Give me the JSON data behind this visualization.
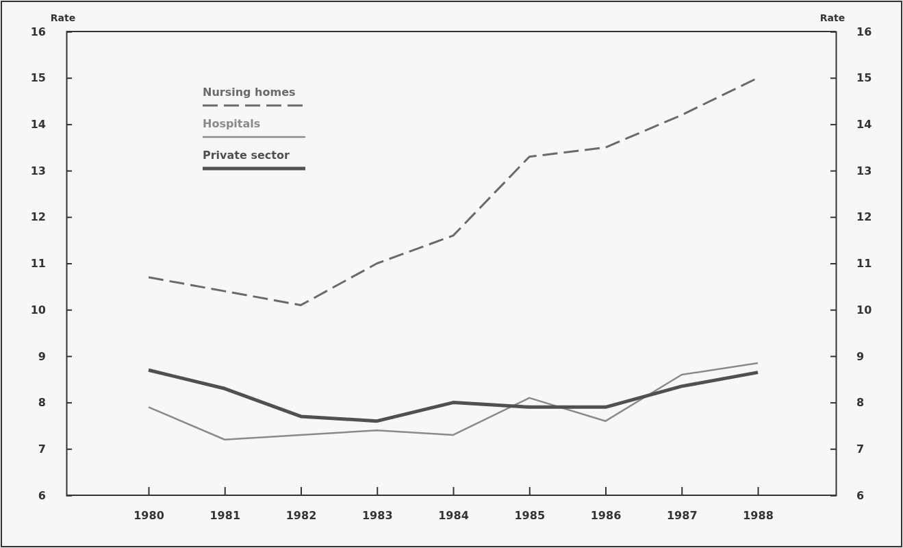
{
  "chart_data": {
    "type": "line",
    "ylabel": "Rate",
    "y2label": "Rate",
    "categories": [
      "1980",
      "1981",
      "1982",
      "1983",
      "1984",
      "1985",
      "1986",
      "1987",
      "1988"
    ],
    "series": [
      {
        "name": "Nursing homes",
        "color": "#6a6a6a",
        "line_style": "dashed",
        "values": [
          10.7,
          10.4,
          10.1,
          11.0,
          11.6,
          13.3,
          13.5,
          14.2,
          15.0
        ]
      },
      {
        "name": "Hospitals",
        "color": "#8a8a8a",
        "line_style": "solid",
        "values": [
          7.9,
          7.2,
          7.3,
          7.4,
          7.3,
          8.1,
          7.6,
          8.6,
          8.85
        ]
      },
      {
        "name": "Private sector",
        "color": "#505050",
        "line_style": "solid",
        "values": [
          8.7,
          8.3,
          7.7,
          7.6,
          8.0,
          7.9,
          7.9,
          8.35,
          8.65
        ]
      }
    ],
    "ylim": [
      6,
      16
    ],
    "yticks": [
      6,
      7,
      8,
      9,
      10,
      11,
      12,
      13,
      14,
      15,
      16
    ],
    "y2lim": [
      6,
      16
    ],
    "y2ticks": [
      6,
      7,
      8,
      9,
      10,
      11,
      12,
      13,
      14,
      15,
      16
    ],
    "legend": "top left",
    "grid": false,
    "marker": "none"
  }
}
